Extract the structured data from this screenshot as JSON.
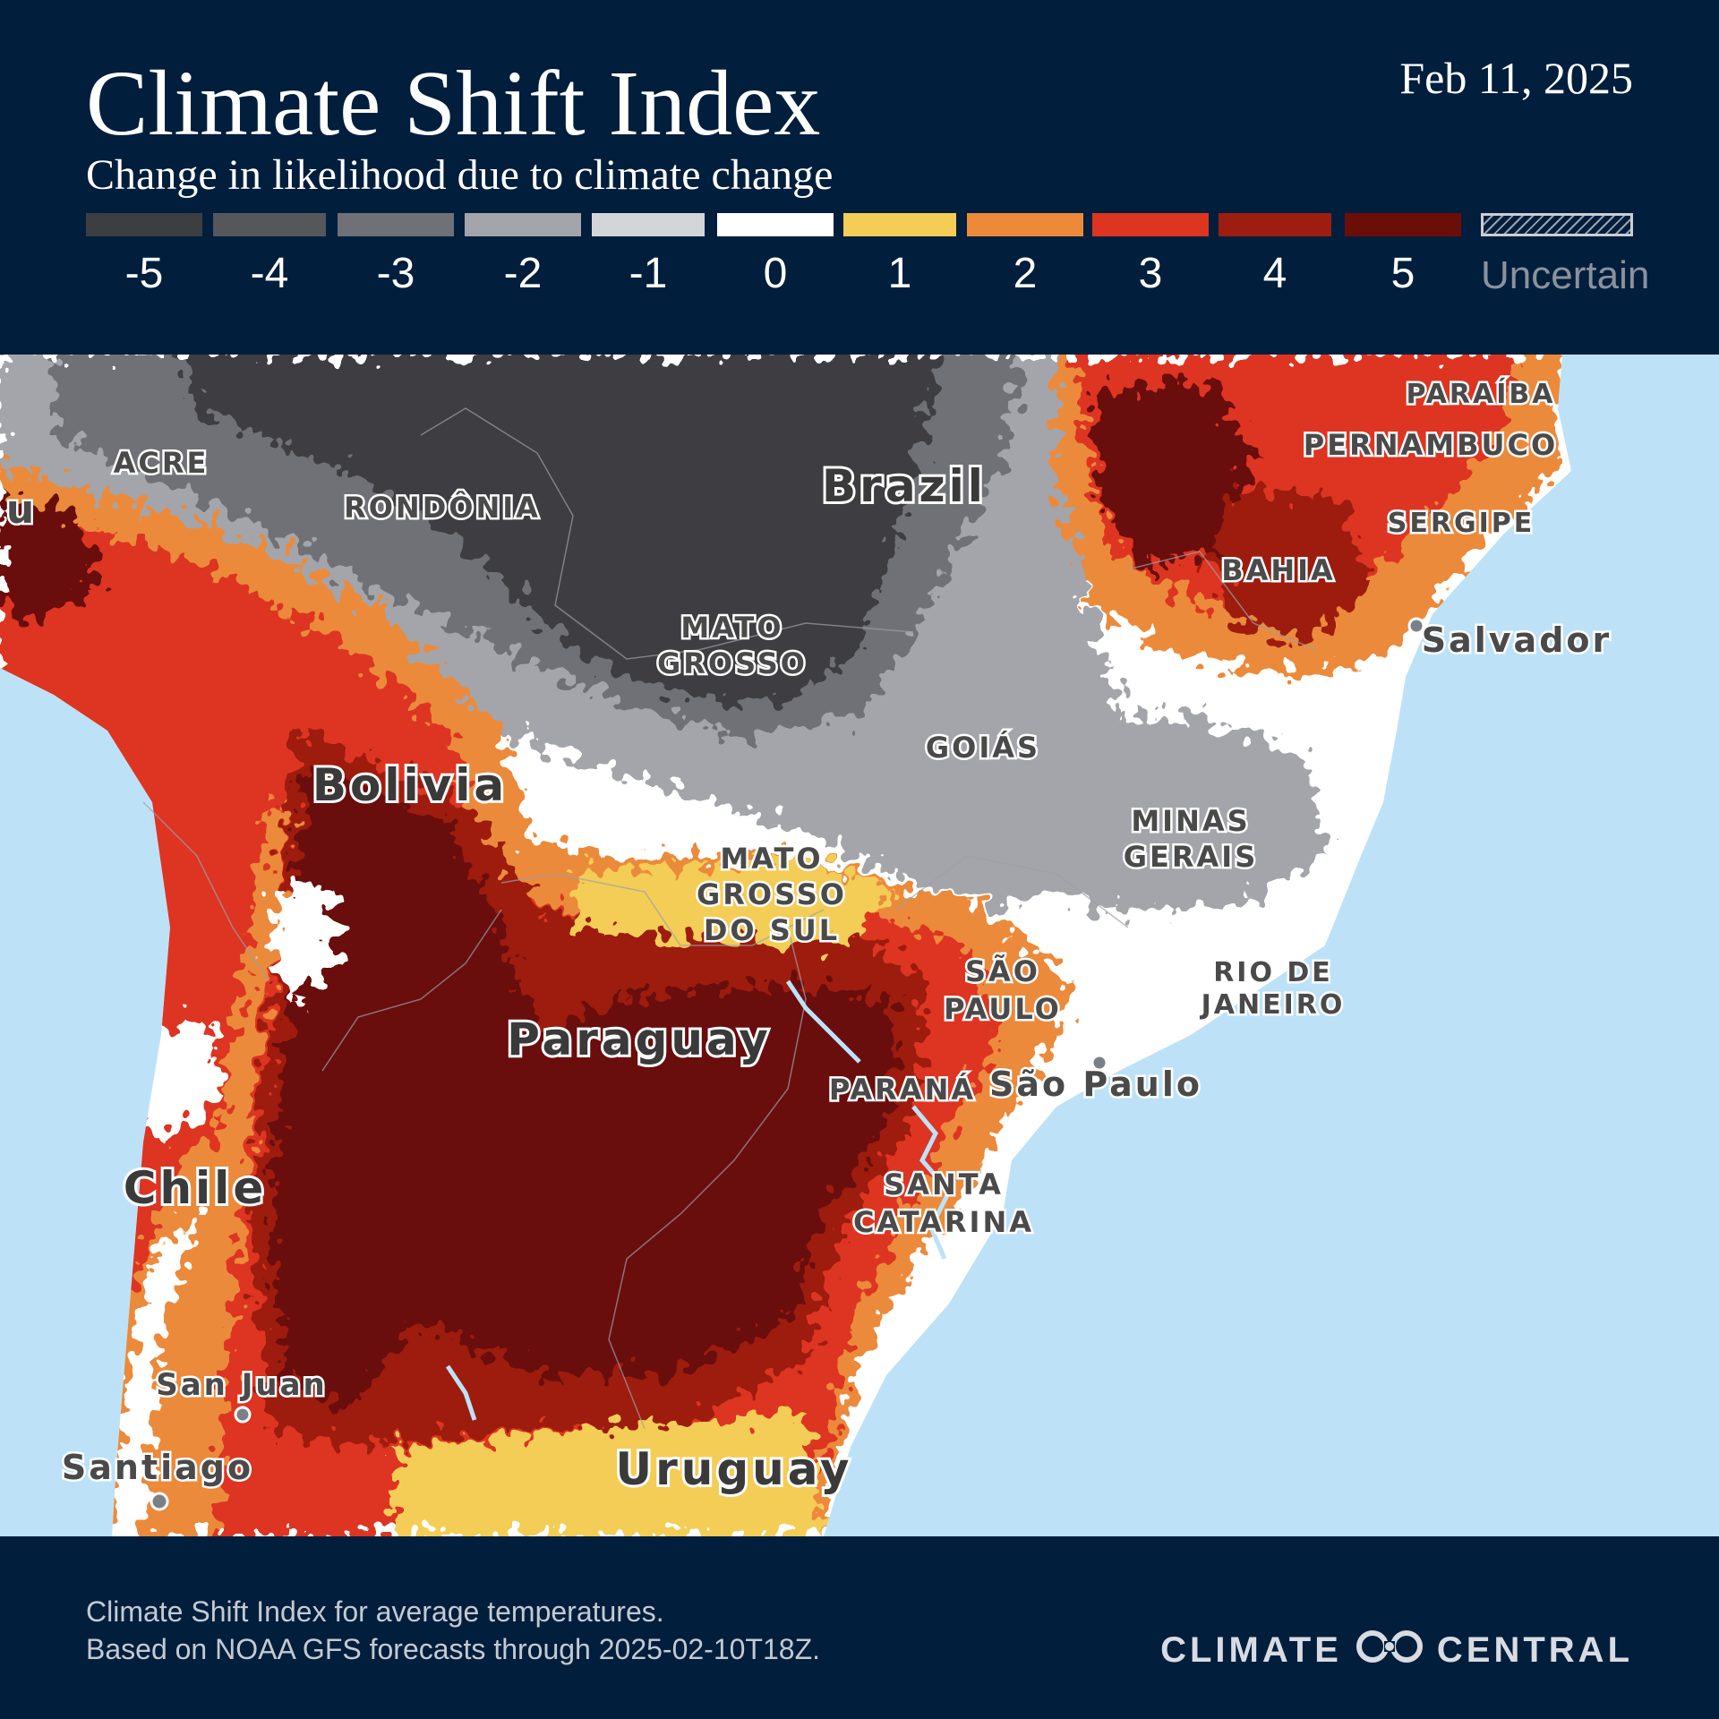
{
  "header": {
    "title": "Climate Shift Index",
    "subtitle": "Change in likelihood due to climate change",
    "date": "Feb 11, 2025"
  },
  "legend": [
    {
      "label": "-5",
      "color": "#3c3e42"
    },
    {
      "label": "-4",
      "color": "#55575b"
    },
    {
      "label": "-3",
      "color": "#6f7176"
    },
    {
      "label": "-2",
      "color": "#a3a5aa"
    },
    {
      "label": "-1",
      "color": "#d4d5d8"
    },
    {
      "label": "0",
      "color": "#ffffff"
    },
    {
      "label": "1",
      "color": "#f4cd56"
    },
    {
      "label": "2",
      "color": "#ec8a3a"
    },
    {
      "label": "3",
      "color": "#dd3520"
    },
    {
      "label": "4",
      "color": "#9d1d10"
    },
    {
      "label": "5",
      "color": "#6b0e08"
    },
    {
      "label": "Uncertain",
      "color": "#9aa2ac"
    }
  ],
  "map": {
    "ocean_color": "#bde2f7",
    "places": {
      "acre": "ACRE",
      "rondonia": "RONDÔNIA",
      "brazil": "Brazil",
      "mato_grosso_1": "MATO",
      "mato_grosso_2": "GROSSO",
      "goias": "GOIÁS",
      "minas_1": "MINAS",
      "minas_2": "GERAIS",
      "bolivia": "Bolivia",
      "ms_1": "MATO",
      "ms_2": "GROSSO",
      "ms_3": "DO SUL",
      "sp_state_1": "SÃO",
      "sp_state_2": "PAULO",
      "rj_1": "RIO DE",
      "rj_2": "JANEIRO",
      "paraguay": "Paraguay",
      "parana": "PARANÁ",
      "sao_paulo": "São Paulo",
      "chile": "Chile",
      "sc_1": "SANTA",
      "sc_2": "CATARINA",
      "san_juan": "San Juan",
      "santiago": "Santiago",
      "uruguay": "Uruguay",
      "paraiba": "PARAÍBA",
      "pernambuco": "PERNAMBUCO",
      "sergipe": "SERGIPE",
      "bahia": "BAHIA",
      "salvador": "Salvador",
      "peru_fragment": "u"
    }
  },
  "footer": {
    "line1": "Climate Shift Index for average temperatures.",
    "line2": "Based on NOAA GFS forecasts through 2025-02-10T18Z.",
    "brand_left": "CLIMATE",
    "brand_right": "CENTRAL",
    "logo_icon": "climate-central-logo-icon"
  }
}
